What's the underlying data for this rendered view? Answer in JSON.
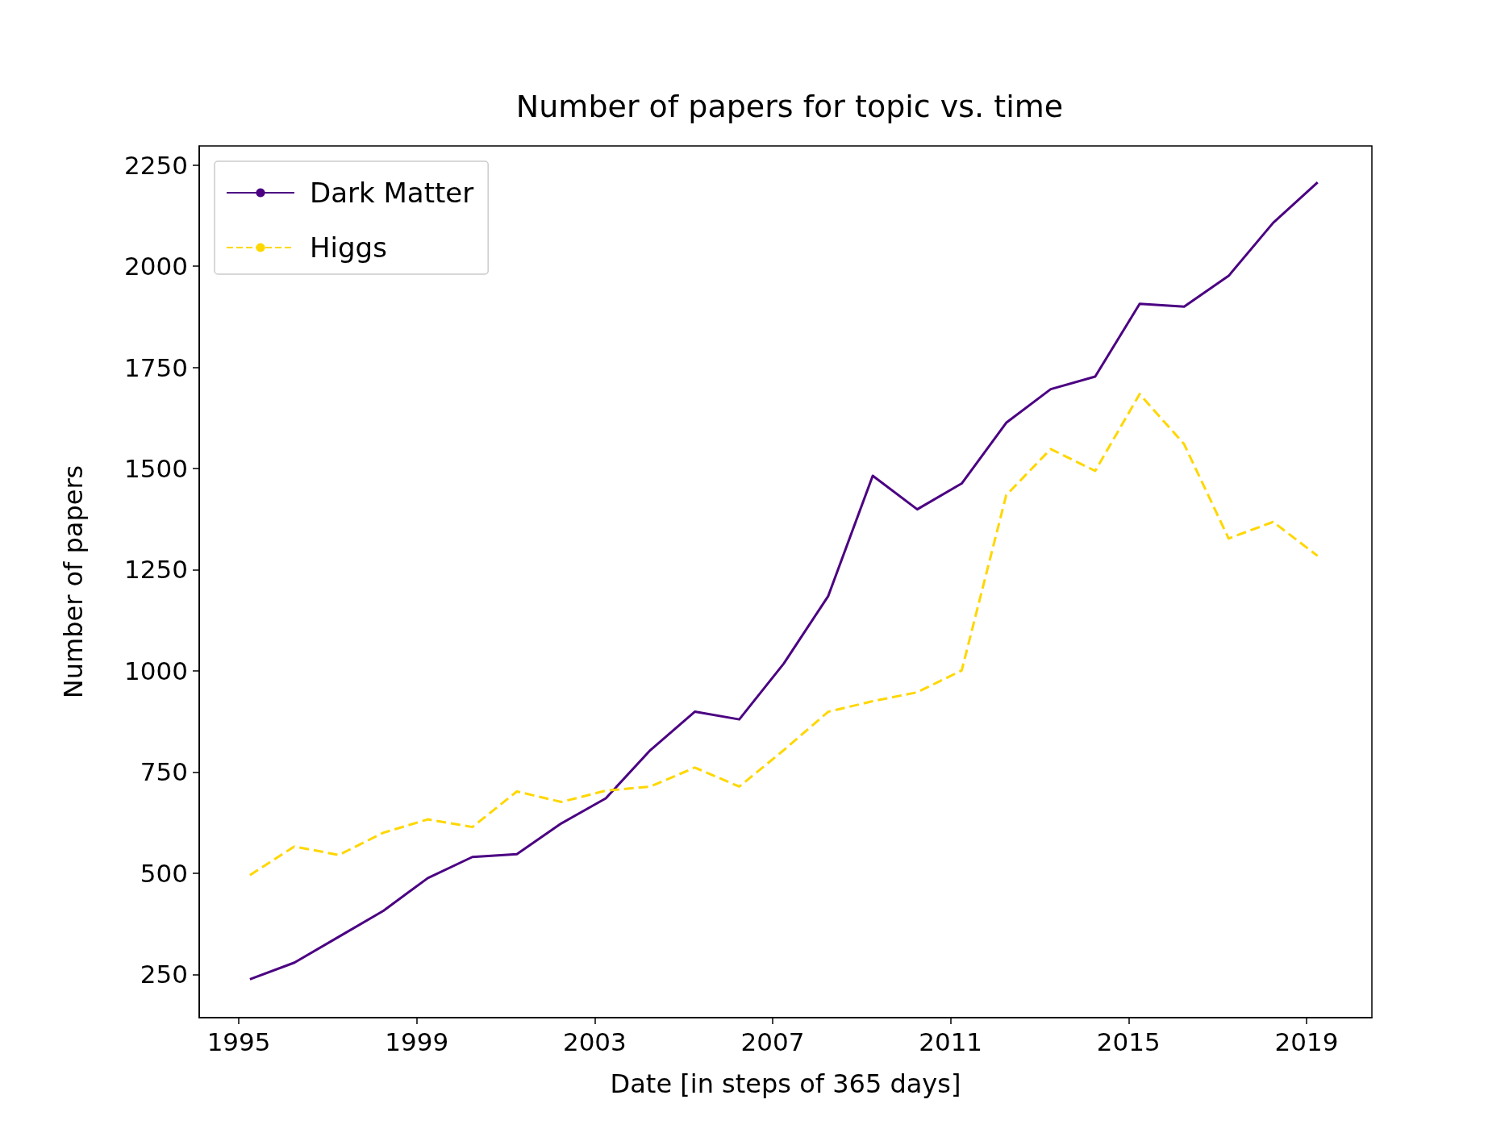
{
  "chart_data": {
    "type": "line",
    "title": "Number of papers for topic vs. time",
    "xlabel": "Date [in steps of 365 days]",
    "ylabel": "Number of papers",
    "x": [
      1995.25,
      1996.25,
      1997.25,
      1998.25,
      1999.25,
      2000.25,
      2001.25,
      2002.25,
      2003.25,
      2004.25,
      2005.25,
      2006.25,
      2007.25,
      2008.25,
      2009.25,
      2010.25,
      2011.25,
      2012.25,
      2013.25,
      2014.25,
      2015.25,
      2016.25,
      2017.25,
      2018.25,
      2019.25
    ],
    "series": [
      {
        "name": "Dark Matter",
        "color": "#4b0082",
        "line_style": "solid",
        "values": [
          238,
          279,
          343,
          407,
          488,
          540,
          547,
          623,
          685,
          804,
          899,
          880,
          1018,
          1185,
          1482,
          1399,
          1463,
          1613,
          1696,
          1727,
          1907,
          1900,
          1976,
          2107,
          2207
        ]
      },
      {
        "name": "Higgs",
        "color": "#ffd700",
        "line_style": "dashed",
        "values": [
          495,
          566,
          545,
          600,
          633,
          614,
          702,
          676,
          704,
          714,
          761,
          714,
          804,
          899,
          925,
          947,
          1001,
          1434,
          1548,
          1494,
          1684,
          1560,
          1327,
          1368,
          1284
        ]
      }
    ],
    "xlim": [
      1994.11,
      2020.47
    ],
    "xticks": [
      1995,
      1999,
      2003,
      2007,
      2011,
      2015,
      2019
    ],
    "ylim": [
      143,
      2297
    ],
    "yticks": [
      250,
      500,
      750,
      1000,
      1250,
      1500,
      1750,
      2000,
      2250
    ],
    "grid": false,
    "legend": "top left",
    "marker": "none"
  }
}
